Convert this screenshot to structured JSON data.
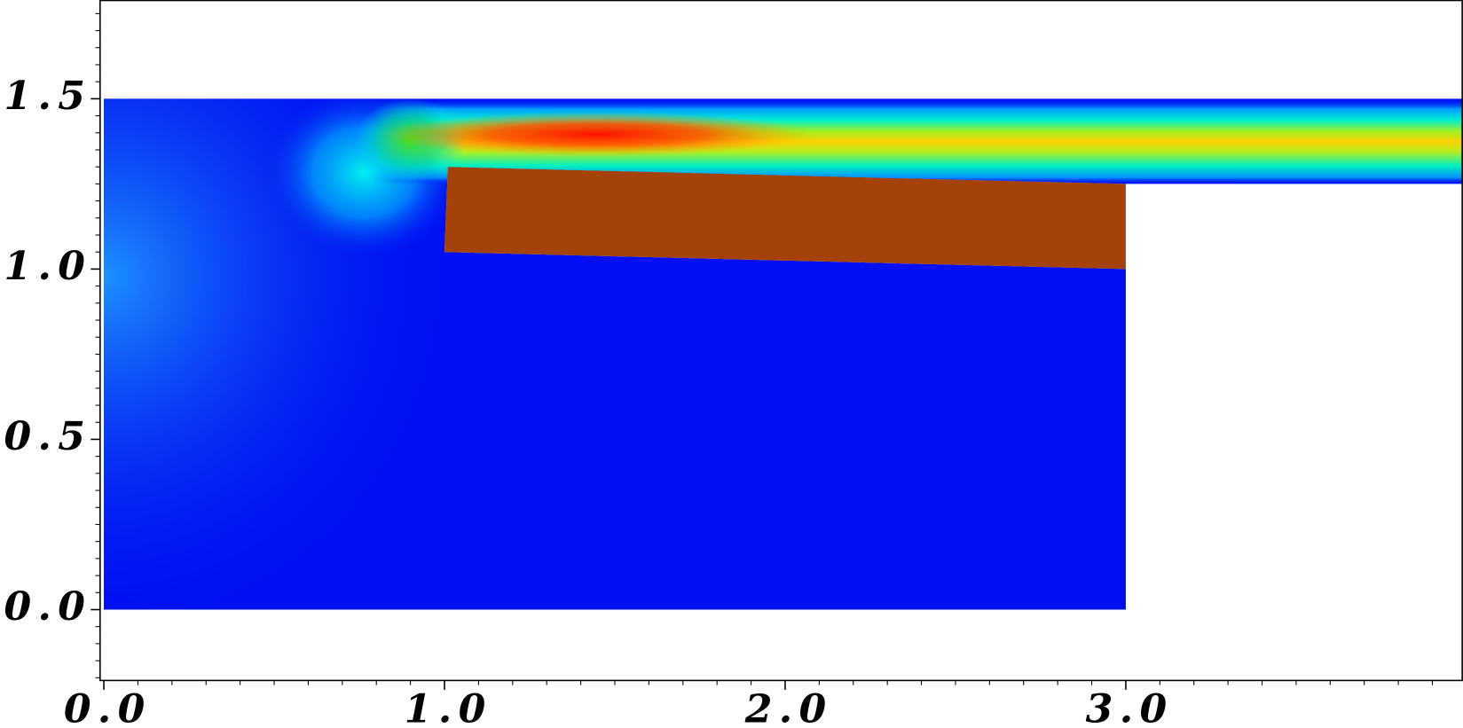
{
  "chart_data": {
    "type": "field",
    "xlim": [
      -0.011,
      3.989
    ],
    "ylim": [
      -0.208,
      1.79
    ],
    "xticks": [
      {
        "value": 0,
        "label": "0.0"
      },
      {
        "value": 1,
        "label": "1.0"
      },
      {
        "value": 2,
        "label": "2.0"
      },
      {
        "value": 3,
        "label": "3.0"
      }
    ],
    "yticks": [
      {
        "value": 0,
        "label": "0.0"
      },
      {
        "value": 0.5,
        "label": "0.5"
      },
      {
        "value": 1,
        "label": "1.0"
      },
      {
        "value": 1.5,
        "label": "1.5"
      }
    ],
    "xminorticks": [
      0.1,
      0.2,
      0.3,
      0.4,
      0.5,
      0.6,
      0.7,
      0.8,
      0.9,
      1.1,
      1.2,
      1.3,
      1.4,
      1.5,
      1.6,
      1.7,
      1.8,
      1.9,
      2.1,
      2.2,
      2.3,
      2.4,
      2.5,
      2.6,
      2.7,
      2.8,
      2.9,
      3.1,
      3.2,
      3.3,
      3.4,
      3.5,
      3.6,
      3.7,
      3.8,
      3.9
    ],
    "yminorticks": [
      -0.2,
      -0.15,
      -0.1,
      -0.05,
      0.05,
      0.1,
      0.15,
      0.2,
      0.25,
      0.3,
      0.35,
      0.4,
      0.45,
      0.55,
      0.6,
      0.65,
      0.7,
      0.75,
      0.8,
      0.85,
      0.9,
      0.95,
      1.05,
      1.1,
      1.15,
      1.2,
      1.25,
      1.3,
      1.35,
      1.4,
      1.45,
      1.55,
      1.6,
      1.65,
      1.7,
      1.75
    ],
    "polygons": [
      {
        "color": "#0010f2",
        "x": [
          0,
          3,
          3,
          1.0,
          1.01,
          3.0,
          3.989,
          3.989,
          0
        ],
        "y": [
          0,
          0,
          1.0,
          1.05,
          1.3,
          1.25,
          1.25,
          1.5,
          1.5
        ]
      },
      {
        "color": "#a5420c",
        "x": [
          1.0,
          1.01,
          3.0,
          3.0
        ],
        "y": [
          1.05,
          1.3,
          1.25,
          1.0
        ]
      }
    ]
  }
}
